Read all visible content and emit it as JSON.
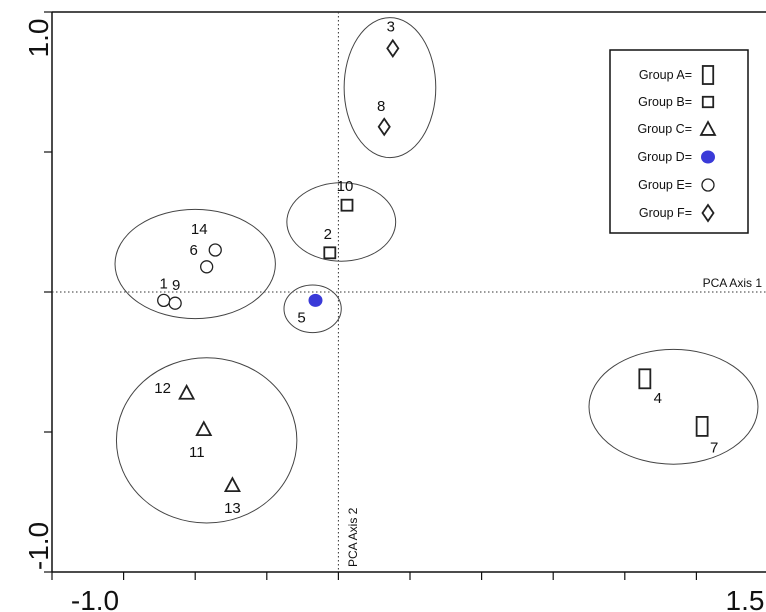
{
  "chart_data": {
    "type": "scatter",
    "xlim": [
      -1.0,
      1.5
    ],
    "ylim": [
      -1.0,
      1.0
    ],
    "x_tick_labels": [
      {
        "value": -1.0,
        "label": "-1.0"
      },
      {
        "value": 1.5,
        "label": "1.5"
      }
    ],
    "y_tick_labels": [
      {
        "value": 1.0,
        "label": "1.0"
      },
      {
        "value": -1.0,
        "label": "-1.0"
      }
    ],
    "x_ticks": [
      -1.0,
      -0.75,
      -0.5,
      -0.25,
      0.0,
      0.25,
      0.5,
      0.75,
      1.0,
      1.25,
      1.5
    ],
    "y_ticks": [
      -1.0,
      -0.5,
      0.0,
      0.5,
      1.0
    ],
    "axis1_label": "PCA Axis 1",
    "axis2_label": "PCA Axis 2",
    "colors": {
      "groupD": "#3a3ad8",
      "stroke": "#222222"
    },
    "legend": [
      {
        "label": "Group A=",
        "symbol": "tall-rect"
      },
      {
        "label": "Group B=",
        "symbol": "square"
      },
      {
        "label": "Group C=",
        "symbol": "triangle"
      },
      {
        "label": "Group D=",
        "symbol": "filled-circle"
      },
      {
        "label": "Group E=",
        "symbol": "circle"
      },
      {
        "label": "Group F=",
        "symbol": "diamond"
      }
    ],
    "points": [
      {
        "id": "3",
        "group": "F",
        "x": 0.19,
        "y": 0.87
      },
      {
        "id": "8",
        "group": "F",
        "x": 0.16,
        "y": 0.59
      },
      {
        "id": "10",
        "group": "B",
        "x": 0.03,
        "y": 0.31
      },
      {
        "id": "2",
        "group": "B",
        "x": -0.03,
        "y": 0.14
      },
      {
        "id": "14",
        "group": "E",
        "x": -0.43,
        "y": 0.15
      },
      {
        "id": "6",
        "group": "E",
        "x": -0.46,
        "y": 0.09
      },
      {
        "id": "1",
        "group": "E",
        "x": -0.61,
        "y": -0.03
      },
      {
        "id": "9",
        "group": "E",
        "x": -0.57,
        "y": -0.04
      },
      {
        "id": "5",
        "group": "D",
        "x": -0.08,
        "y": -0.03
      },
      {
        "id": "12",
        "group": "C",
        "x": -0.53,
        "y": -0.36
      },
      {
        "id": "11",
        "group": "C",
        "x": -0.47,
        "y": -0.49
      },
      {
        "id": "13",
        "group": "C",
        "x": -0.37,
        "y": -0.69
      },
      {
        "id": "4",
        "group": "A",
        "x": 1.07,
        "y": -0.31
      },
      {
        "id": "7",
        "group": "A",
        "x": 1.27,
        "y": -0.48
      }
    ],
    "ellipses": [
      {
        "group": "F",
        "cx": 0.18,
        "cy": 0.73,
        "rx": 0.16,
        "ry": 0.25
      },
      {
        "group": "B",
        "cx": 0.01,
        "cy": 0.25,
        "rx": 0.19,
        "ry": 0.14
      },
      {
        "group": "E",
        "cx": -0.5,
        "cy": 0.1,
        "rx": 0.28,
        "ry": 0.195
      },
      {
        "group": "D",
        "cx": -0.09,
        "cy": -0.06,
        "rx": 0.1,
        "ry": 0.085
      },
      {
        "group": "C",
        "cx": -0.46,
        "cy": -0.53,
        "rx": 0.315,
        "ry": 0.295
      },
      {
        "group": "A",
        "cx": 1.17,
        "cy": -0.41,
        "rx": 0.295,
        "ry": 0.205
      }
    ]
  }
}
